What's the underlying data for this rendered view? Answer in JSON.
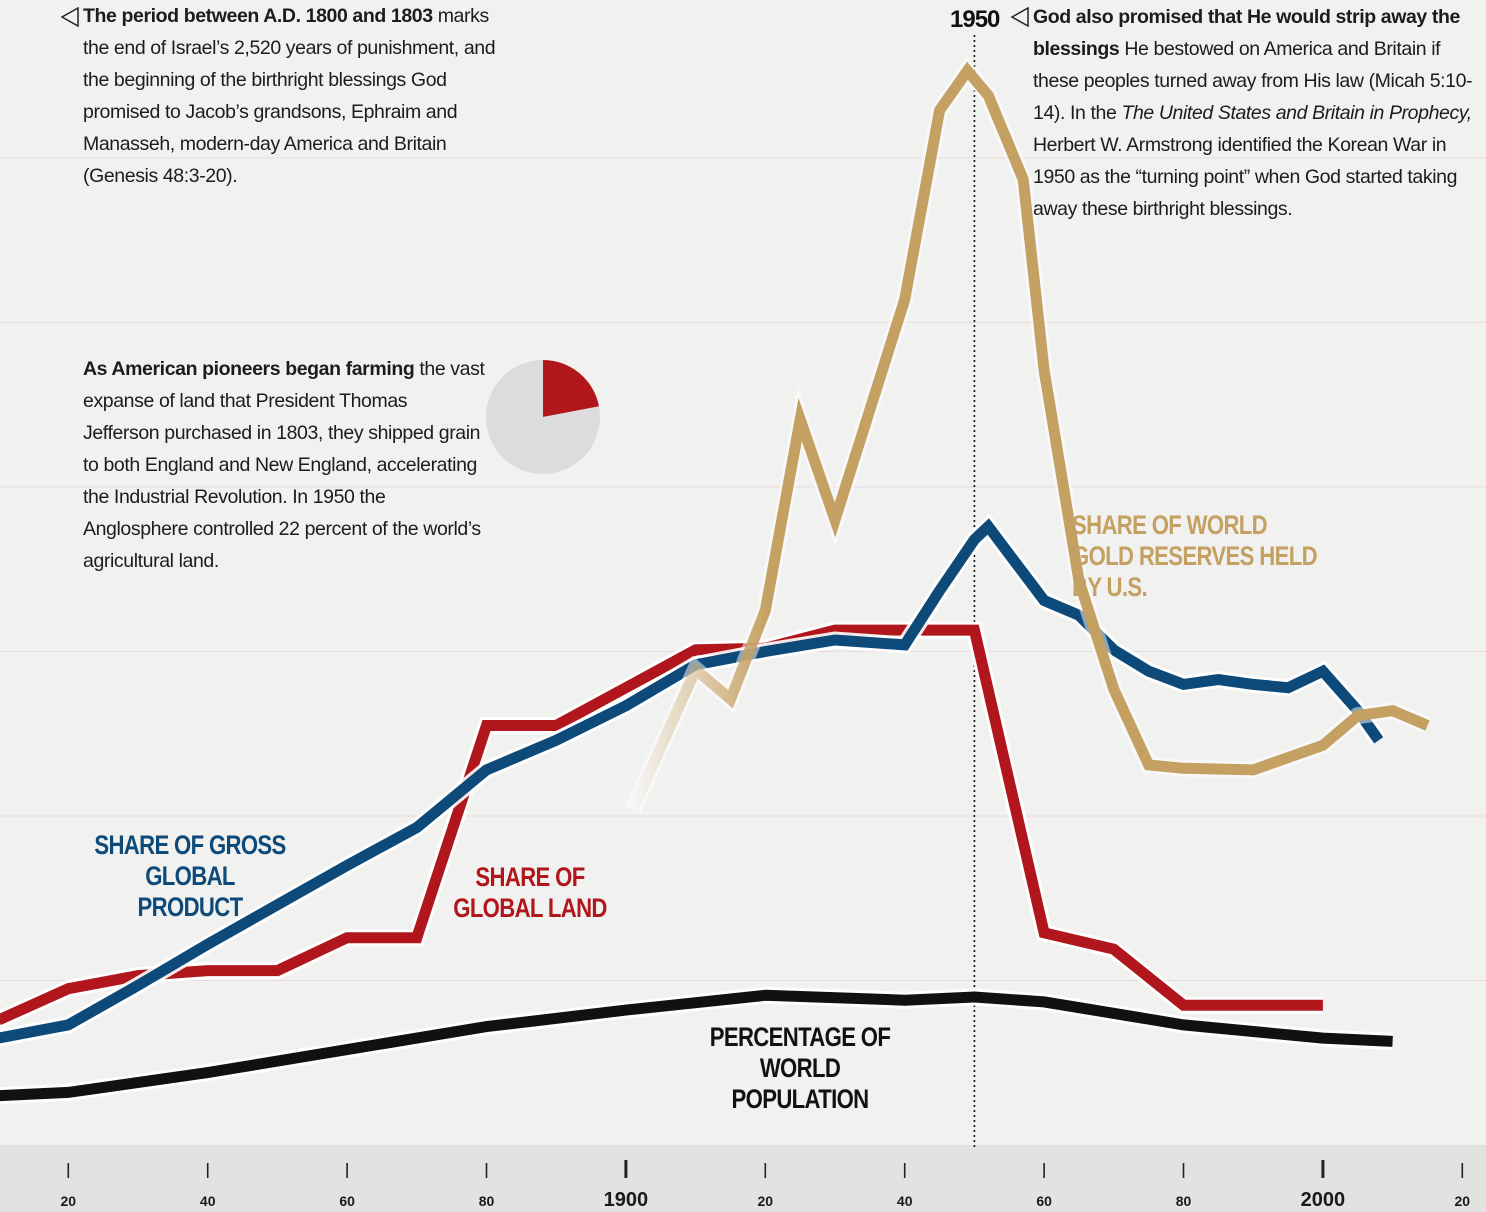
{
  "chart_data": [
    {
      "type": "line",
      "xlim": [
        1810.2,
        2023.4
      ],
      "ylim": [
        0,
        70
      ],
      "yticks": [
        10,
        20,
        30,
        40,
        50,
        60
      ],
      "grid": true,
      "xticks": [
        {
          "value": 1820,
          "label": "20"
        },
        {
          "value": 1840,
          "label": "40"
        },
        {
          "value": 1860,
          "label": "60"
        },
        {
          "value": 1880,
          "label": "80"
        },
        1900,
        {
          "value": 1920,
          "label": "20"
        },
        {
          "value": 1940,
          "label": "40"
        },
        {
          "value": 1960,
          "label": "60"
        },
        {
          "value": 1980,
          "label": "80"
        },
        2000,
        {
          "value": 2020,
          "label": "20"
        }
      ],
      "marker_x": 1950,
      "series": [
        {
          "name": "SHARE OF WORLD GOLD RESERVES HELD BY U.S.",
          "color": "#c4a062",
          "x": [
            1901,
            1910,
            1915,
            1920,
            1925,
            1930,
            1935,
            1940,
            1945,
            1949,
            1952,
            1957,
            1960,
            1965,
            1970,
            1975,
            1980,
            1990,
            2000,
            2005,
            2010,
            2015
          ],
          "values": [
            20.4,
            28.9,
            27.1,
            32.5,
            44.1,
            38.0,
            44.7,
            51.4,
            62.9,
            65.3,
            63.8,
            58.7,
            47.1,
            34.3,
            27.7,
            23.1,
            22.9,
            22.8,
            24.3,
            26.1,
            26.4,
            25.5
          ]
        },
        {
          "name": "SHARE OF GROSS GLOBAL PRODUCT",
          "color": "#0d4a7a",
          "x": [
            1810,
            1820,
            1830,
            1840,
            1850,
            1860,
            1870,
            1880,
            1890,
            1900,
            1910,
            1920,
            1930,
            1940,
            1945,
            1950,
            1952,
            1955,
            1960,
            1965,
            1970,
            1975,
            1980,
            1985,
            1990,
            1995,
            1998,
            2000,
            2005,
            2008
          ],
          "values": [
            6.5,
            7.3,
            9.7,
            12.2,
            14.6,
            17.0,
            19.3,
            22.8,
            24.6,
            26.7,
            29.2,
            30.0,
            30.7,
            30.4,
            33.7,
            36.8,
            37.6,
            35.9,
            33.1,
            32.2,
            30.1,
            28.8,
            28.0,
            28.3,
            28.0,
            27.8,
            28.4,
            28.8,
            26.4,
            24.6
          ]
        },
        {
          "name": "SHARE OF GLOBAL LAND",
          "color": "#b0161b",
          "x": [
            1810,
            1820,
            1830,
            1840,
            1850,
            1860,
            1870,
            1880,
            1890,
            1900,
            1910,
            1920,
            1930,
            1940,
            1950,
            1960,
            1970,
            1980,
            1990,
            2000
          ],
          "values": [
            7.6,
            9.5,
            10.3,
            10.6,
            10.6,
            12.6,
            12.6,
            25.5,
            25.5,
            27.8,
            30.1,
            30.2,
            31.3,
            31.3,
            31.3,
            12.9,
            11.9,
            8.5,
            8.5,
            8.5
          ]
        },
        {
          "name": "PERCENTAGE OF WORLD POPULATION",
          "color": "#111111",
          "x": [
            1810,
            1820,
            1840,
            1860,
            1880,
            1900,
            1920,
            1940,
            1950,
            1960,
            1980,
            2000,
            2010
          ],
          "values": [
            3.0,
            3.2,
            4.4,
            5.8,
            7.2,
            8.2,
            9.1,
            8.8,
            9.0,
            8.7,
            7.3,
            6.5,
            6.3
          ]
        }
      ],
      "annotations": [
        {
          "runs": [
            {
              "text": "The period between A.D. 1800 and 1803",
              "style": "bold"
            },
            {
              "text": " marks the end of Israel’s 2,520 years of punishment, and the beginning of the birthright blessings God promised to Jacob’s grandsons, Ephraim and Manasseh, modern-day America and Britain (Genesis 48:3-20).",
              "style": "normal"
            }
          ]
        },
        {
          "runs": [
            {
              "text": "As American pioneers began farming",
              "style": "bold"
            },
            {
              "text": " the vast expanse of land that President Thomas Jefferson purchased in 1803, they shipped grain to both England and New England, accelerating the Industrial Revolution. In 1950 the Anglosphere controlled 22 percent of the world’s agricultural land.",
              "style": "normal"
            }
          ]
        },
        {
          "runs": [
            {
              "text": "God also promised that He would strip away the blessings",
              "style": "bold"
            },
            {
              "text": " He bestowed on America and Britain if these peoples turned away from His law (Micah 5:10-14). In the ",
              "style": "normal"
            },
            {
              "text": "The United States and Britain in Prophecy,",
              "style": "italic"
            },
            {
              "text": " Herbert W. Armstrong identified the Korean War in 1950 as the “turning point” when God started taking away these birthright blessings.",
              "style": "normal"
            }
          ]
        }
      ]
    },
    {
      "type": "pie",
      "values": [
        22,
        78
      ],
      "colors": [
        "#b0161b",
        "#dcdcdc"
      ]
    }
  ]
}
